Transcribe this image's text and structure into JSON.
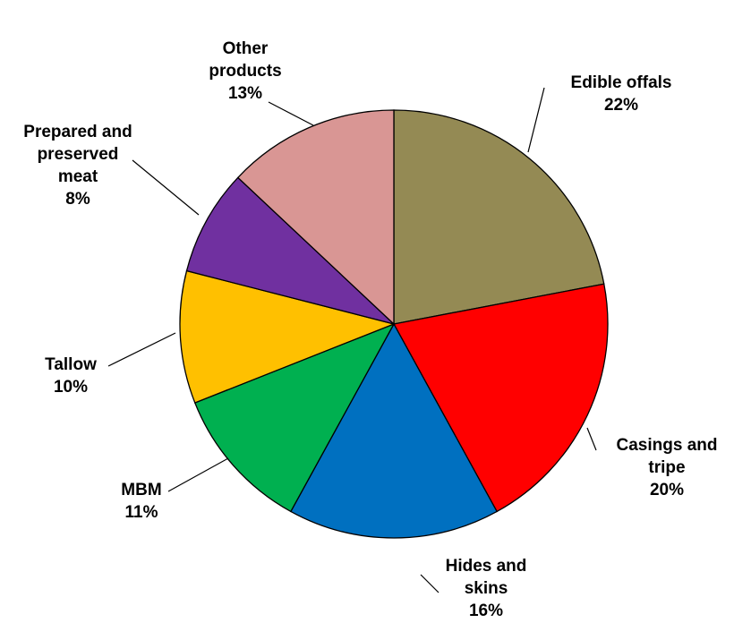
{
  "chart_data": {
    "type": "pie",
    "title": "",
    "slices": [
      {
        "label_lines": [
          "Edible offals"
        ],
        "pct_label": "22%",
        "value": 22,
        "color": "#948A54"
      },
      {
        "label_lines": [
          "Casings and",
          "tripe"
        ],
        "pct_label": "20%",
        "value": 20,
        "color": "#FF0000"
      },
      {
        "label_lines": [
          "Hides and",
          "skins"
        ],
        "pct_label": "16%",
        "value": 16,
        "color": "#0070C0"
      },
      {
        "label_lines": [
          "MBM"
        ],
        "pct_label": "11%",
        "value": 11,
        "color": "#00B050"
      },
      {
        "label_lines": [
          "Tallow"
        ],
        "pct_label": "10%",
        "value": 10,
        "color": "#FFC000"
      },
      {
        "label_lines": [
          "Prepared and",
          "preserved",
          "meat"
        ],
        "pct_label": "8%",
        "value": 8,
        "color": "#7030A0"
      },
      {
        "label_lines": [
          "Other",
          "products"
        ],
        "pct_label": "13%",
        "value": 13,
        "color": "#D99694"
      }
    ]
  }
}
